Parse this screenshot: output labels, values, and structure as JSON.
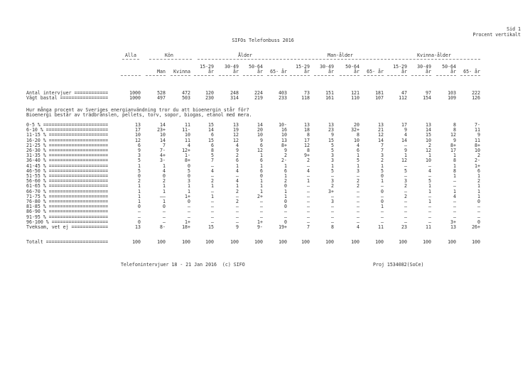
{
  "page": {
    "page_label": "Sid 1",
    "table_kind": "Procent vertikalt",
    "title": "SIFOs Telefonbuss 2016"
  },
  "header": {
    "alla": "Alla",
    "kon": "Kön",
    "alder": "Ålder",
    "man_alder": "Man-ålder",
    "kvinna_alder": "Kvinna-ålder",
    "cols": [
      [
        "",
        ""
      ],
      [
        "",
        "Man"
      ],
      [
        "",
        "Kvinna"
      ],
      [
        "15-29",
        "år"
      ],
      [
        "30-49",
        "år"
      ],
      [
        "50-64",
        "år"
      ],
      [
        "",
        "65- år"
      ],
      [
        "15-29",
        "år"
      ],
      [
        "30-49",
        "år"
      ],
      [
        "50-64",
        "år"
      ],
      [
        "",
        "65- år"
      ],
      [
        "15-29",
        "år"
      ],
      [
        "30-49",
        "år"
      ],
      [
        "50-64",
        "år"
      ],
      [
        "",
        "65- år"
      ]
    ]
  },
  "base": {
    "rows": [
      {
        "label": "Antal intervjuer ============",
        "values": [
          "1000",
          "528",
          "472",
          "120",
          "248",
          "224",
          "403",
          "73",
          "151",
          "121",
          "181",
          "47",
          "97",
          "103",
          "222"
        ]
      },
      {
        "label": "Vägt bastal =================",
        "values": [
          "1000",
          "497",
          "503",
          "230",
          "314",
          "219",
          "233",
          "118",
          "161",
          "110",
          "107",
          "112",
          "154",
          "109",
          "126"
        ]
      }
    ]
  },
  "question": {
    "line1": "Hur många procent av Sveriges energianvändning tror du att bioenergin står för?",
    "line2": "Bioenergi består av trädbränslen, pellets, torv, sopor, biogas, etanol med mera."
  },
  "table": {
    "rows": [
      {
        "label": "0-5 % =======================",
        "values": [
          "13",
          "14",
          "11",
          "15",
          "13",
          "14",
          "10-",
          "13",
          "13",
          "20",
          "13",
          "17",
          "13",
          "8",
          "7-"
        ]
      },
      {
        "label": "6-10 % ======================",
        "values": [
          "17",
          "23+",
          "11-",
          "14",
          "19",
          "20",
          "16",
          "18",
          "23",
          "32+",
          "21",
          "9",
          "14",
          "8",
          "11"
        ]
      },
      {
        "label": "11-15 % =====================",
        "values": [
          "10",
          "10",
          "10",
          "6",
          "12",
          "10",
          "10",
          "8",
          "9",
          "8",
          "12",
          "4",
          "15",
          "12",
          "9"
        ]
      },
      {
        "label": "16-20 % =====================",
        "values": [
          "12",
          "14",
          "11",
          "15",
          "12",
          "9",
          "13",
          "17",
          "15",
          "10",
          "14",
          "14",
          "10",
          "9",
          "11"
        ]
      },
      {
        "label": "21-25 % =====================",
        "values": [
          "6",
          "7",
          "4",
          "6",
          "4",
          "6",
          "8+",
          "12",
          "5",
          "4",
          "7",
          "–",
          "2",
          "8+",
          "8+"
        ]
      },
      {
        "label": "26-30 % =====================",
        "values": [
          "9",
          "7-",
          "12+",
          "8",
          "9",
          "12",
          "9",
          "8",
          "5",
          "6",
          "7",
          "9",
          "12",
          "17",
          "10"
        ]
      },
      {
        "label": "31-35 % =====================",
        "values": [
          "3",
          "4+",
          "1-",
          "5",
          "2",
          "1",
          "2",
          "9+",
          "3",
          "1",
          "3",
          "1",
          "1",
          "1",
          "2"
        ]
      },
      {
        "label": "36-40 % =====================",
        "values": [
          "5",
          "3-",
          "8+",
          "7",
          "6",
          "6",
          "2-",
          "2",
          "3",
          "5",
          "2",
          "12",
          "10",
          "8",
          "2-"
        ]
      },
      {
        "label": "41-45 % =====================",
        "values": [
          "1",
          "1",
          "0",
          "–",
          "1",
          "1",
          "1",
          "–",
          "1",
          "1",
          "1",
          "–",
          "–",
          "1",
          "1+"
        ]
      },
      {
        "label": "46-50 % =====================",
        "values": [
          "5",
          "4",
          "5",
          "4",
          "4",
          "6",
          "6",
          "4",
          "5",
          "3",
          "5",
          "5",
          "4",
          "8",
          "6"
        ]
      },
      {
        "label": "51-55 % =====================",
        "values": [
          "0",
          "0",
          "0",
          "–",
          "–",
          "0",
          "1",
          "–",
          "–",
          "–",
          "0",
          "–",
          "–",
          "1",
          "1"
        ]
      },
      {
        "label": "56-60 % =====================",
        "values": [
          "2",
          "2",
          "3",
          "2",
          "4",
          "1",
          "2",
          "1",
          "3",
          "2",
          "1",
          "3",
          "5",
          "–",
          "2"
        ]
      },
      {
        "label": "61-65 % =====================",
        "values": [
          "1",
          "1",
          "1",
          "1",
          "1",
          "1",
          "0",
          "–",
          "2",
          "2",
          "–",
          "2",
          "1",
          "–",
          "1"
        ]
      },
      {
        "label": "66-70 % =====================",
        "values": [
          "1",
          "1",
          "1",
          "–",
          "2",
          "1",
          "1",
          "–",
          "3+",
          "–",
          "0",
          "–",
          "1",
          "1",
          "1"
        ]
      },
      {
        "label": "71-75 % =====================",
        "values": [
          "1",
          "––",
          "1+",
          "1",
          "–",
          "2+",
          "1",
          "–",
          "–",
          "–",
          "–",
          "2",
          "–",
          "4",
          "1"
        ]
      },
      {
        "label": "76-80 % =====================",
        "values": [
          "1",
          "1",
          "0",
          "–",
          "2",
          "–",
          "0",
          "–",
          "3",
          "–",
          "0",
          "–",
          "1",
          "–",
          "0"
        ]
      },
      {
        "label": "81-85 % =====================",
        "values": [
          "0",
          "0",
          "–",
          "–",
          "–",
          "–",
          "0",
          "–",
          "–",
          "–",
          "1",
          "–",
          "–",
          "–",
          "–"
        ]
      },
      {
        "label": "86-90 % =====================",
        "values": [
          "–",
          "–",
          "–",
          "–",
          "–",
          "–",
          "–",
          "–",
          "–",
          "–",
          "–",
          "–",
          "–",
          "–",
          "–"
        ]
      },
      {
        "label": "91-95 % =====================",
        "values": [
          "–",
          "–",
          "–",
          "–",
          "–",
          "–",
          "–",
          "–",
          "–",
          "–",
          "–",
          "–",
          "–",
          "–",
          "–"
        ]
      },
      {
        "label": "96-100 % ====================",
        "values": [
          "0",
          "–",
          "1+",
          "–",
          "–",
          "1+",
          "0",
          "–",
          "–",
          "–",
          "–",
          "–",
          "–",
          "3+",
          "0"
        ]
      },
      {
        "label": "Tveksam, vet ej =============",
        "values": [
          "13",
          "8-",
          "18+",
          "15",
          "9",
          "9-",
          "19+",
          "7",
          "8",
          "4",
          "11",
          "23",
          "11",
          "13",
          "26+"
        ]
      }
    ],
    "total": {
      "label": "Totalt ======================",
      "values": [
        "100",
        "100",
        "100",
        "100",
        "100",
        "100",
        "100",
        "100",
        "100",
        "100",
        "100",
        "100",
        "100",
        "100",
        "100"
      ]
    }
  },
  "footer": {
    "left": "Telefonintervjuer 18 - 21 Jan 2016  (c) SIFO",
    "right": "Proj 1534082(SoCe)"
  }
}
